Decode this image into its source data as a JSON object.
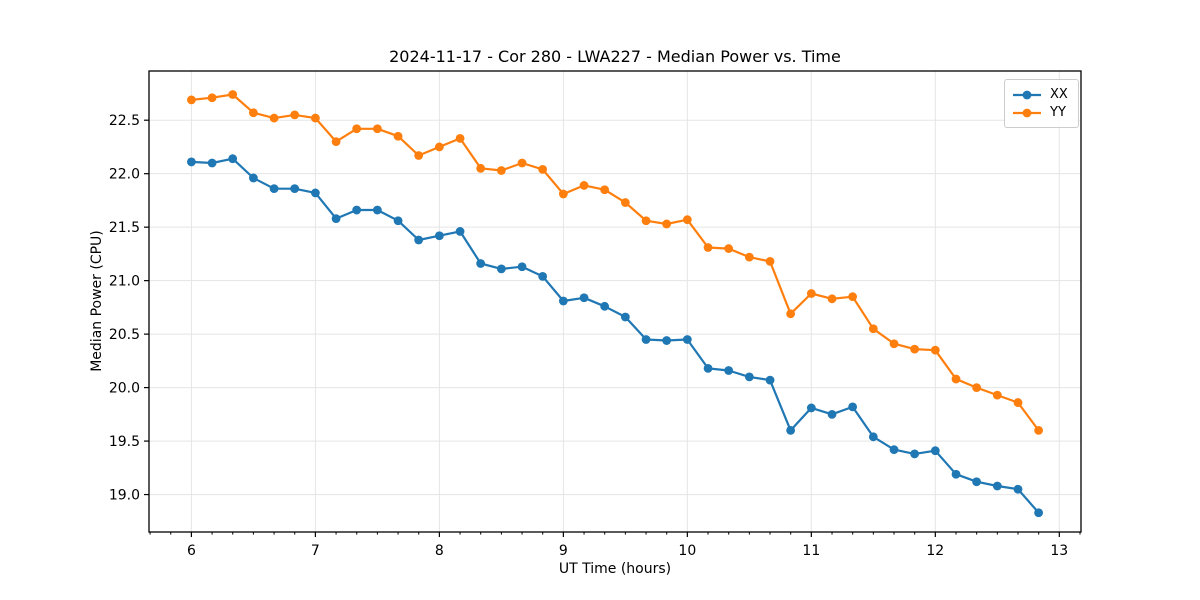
{
  "colors": {
    "background": "#ffffff",
    "grid": "#e5e5e5",
    "spine": "#000000",
    "series_xx": "#1f77b4",
    "series_yy": "#ff7f0e"
  },
  "chart_data": {
    "type": "line",
    "title": "2024-11-17 - Cor 280 - LWA227 - Median Power vs. Time",
    "xlabel": "UT Time (hours)",
    "ylabel": "Median Power (CPU)",
    "xlim": [
      5.658,
      13.175
    ],
    "ylim": [
      18.65,
      22.96
    ],
    "xticks": [
      6,
      7,
      8,
      9,
      10,
      11,
      12,
      13
    ],
    "yticks": [
      19.0,
      19.5,
      20.0,
      20.5,
      21.0,
      21.5,
      22.0,
      22.5
    ],
    "x_minor_tick_step": 0.16667,
    "grid": true,
    "marker": "o",
    "legend_position": "upper right",
    "x": [
      6.0,
      6.167,
      6.333,
      6.5,
      6.667,
      6.833,
      7.0,
      7.167,
      7.333,
      7.5,
      7.667,
      7.833,
      8.0,
      8.167,
      8.333,
      8.5,
      8.667,
      8.833,
      9.0,
      9.167,
      9.333,
      9.5,
      9.667,
      9.833,
      10.0,
      10.167,
      10.333,
      10.5,
      10.667,
      10.833,
      11.0,
      11.167,
      11.333,
      11.5,
      11.667,
      11.833,
      12.0,
      12.167,
      12.333,
      12.5,
      12.667,
      12.833
    ],
    "series": [
      {
        "name": "XX",
        "color": "#1f77b4",
        "values": [
          22.11,
          22.1,
          22.14,
          21.96,
          21.86,
          21.86,
          21.82,
          21.58,
          21.66,
          21.66,
          21.56,
          21.38,
          21.42,
          21.46,
          21.16,
          21.11,
          21.13,
          21.04,
          20.81,
          20.84,
          20.76,
          20.66,
          20.45,
          20.44,
          20.45,
          20.18,
          20.16,
          20.1,
          20.07,
          19.6,
          19.81,
          19.75,
          19.82,
          19.54,
          19.42,
          19.38,
          19.41,
          19.19,
          19.12,
          19.08,
          19.05,
          18.83
        ]
      },
      {
        "name": "YY",
        "color": "#ff7f0e",
        "values": [
          22.69,
          22.71,
          22.74,
          22.57,
          22.52,
          22.55,
          22.52,
          22.3,
          22.42,
          22.42,
          22.35,
          22.17,
          22.25,
          22.33,
          22.05,
          22.03,
          22.1,
          22.04,
          21.81,
          21.89,
          21.85,
          21.73,
          21.56,
          21.53,
          21.57,
          21.31,
          21.3,
          21.22,
          21.18,
          20.69,
          20.88,
          20.83,
          20.85,
          20.55,
          20.41,
          20.36,
          20.35,
          20.08,
          20.0,
          19.93,
          19.86,
          19.6
        ]
      }
    ]
  }
}
